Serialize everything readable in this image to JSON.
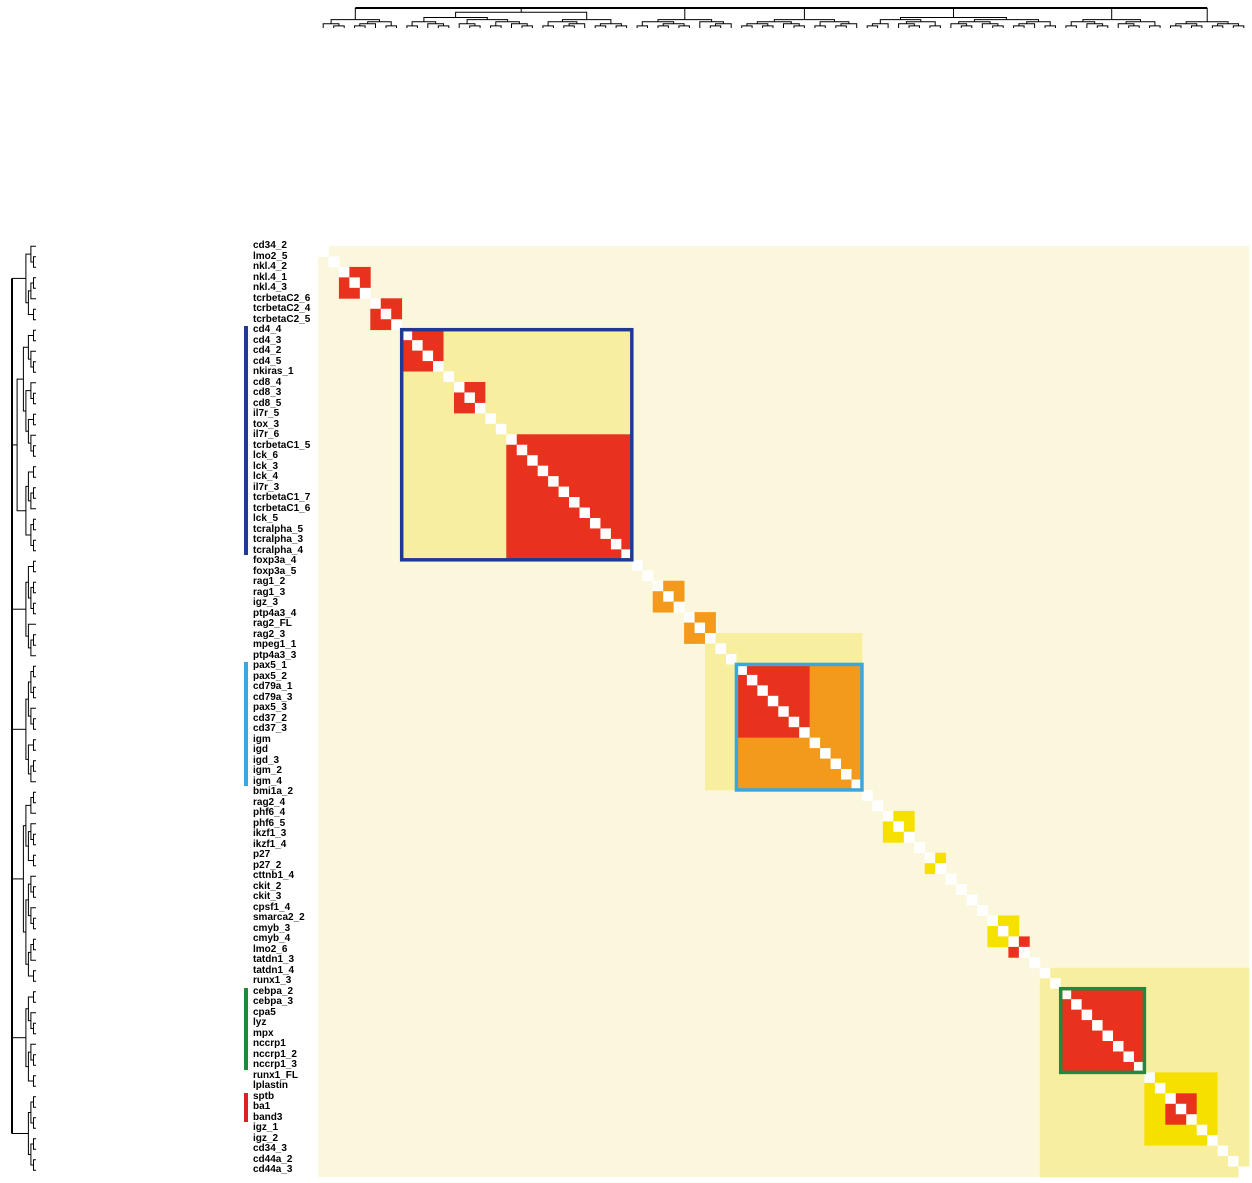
{
  "chart_data": {
    "type": "heatmap",
    "title": "",
    "xlabel": "",
    "ylabel": "",
    "row_labels": [
      "cd34_2",
      "lmo2_5",
      "nkl.4_2",
      "nkl.4_1",
      "nkl.4_3",
      "tcrbetaC2_6",
      "tcrbetaC2_4",
      "tcrbetaC2_5",
      "cd4_4",
      "cd4_3",
      "cd4_2",
      "cd4_5",
      "nkiras_1",
      "cd8_4",
      "cd8_3",
      "cd8_5",
      "il7r_5",
      "tox_3",
      "il7r_6",
      "tcrbetaC1_5",
      "lck_6",
      "lck_3",
      "lck_4",
      "il7r_3",
      "tcrbetaC1_7",
      "tcrbetaC1_6",
      "lck_5",
      "tcralpha_5",
      "tcralpha_3",
      "tcralpha_4",
      "foxp3a_4",
      "foxp3a_5",
      "rag1_2",
      "rag1_3",
      "igz_3",
      "ptp4a3_4",
      "rag2_FL",
      "rag2_3",
      "mpeg1_1",
      "ptp4a3_3",
      "pax5_1",
      "pax5_2",
      "cd79a_1",
      "cd79a_3",
      "pax5_3",
      "cd37_2",
      "cd37_3",
      "igm",
      "igd",
      "igd_3",
      "igm_2",
      "igm_4",
      "bmi1a_2",
      "rag2_4",
      "phf6_4",
      "phf6_5",
      "ikzf1_3",
      "ikzf1_4",
      "p27",
      "p27_2",
      "cttnb1_4",
      "ckit_2",
      "ckit_3",
      "cpsf1_4",
      "smarca2_2",
      "cmyb_3",
      "cmyb_4",
      "lmo2_6",
      "tatdn1_3",
      "tatdn1_4",
      "runx1_3",
      "cebpa_2",
      "cebpa_3",
      "cpa5",
      "lyz",
      "mpx",
      "nccrp1",
      "nccrp1_2",
      "nccrp1_3",
      "runx1_FL",
      "lplastin",
      "sptb",
      "ba1",
      "band3",
      "igz_1",
      "igz_2",
      "cd34_3",
      "cd44a_2",
      "cd44a_3"
    ],
    "blocks": [
      {
        "start": 2,
        "end": 4,
        "strength": 0.95
      },
      {
        "start": 5,
        "end": 7,
        "strength": 0.95
      },
      {
        "start": 8,
        "end": 11,
        "strength": 0.95
      },
      {
        "start": 13,
        "end": 15,
        "strength": 0.95
      },
      {
        "start": 8,
        "end": 29,
        "strength": 0.35
      },
      {
        "start": 18,
        "end": 29,
        "strength": 0.95
      },
      {
        "start": 32,
        "end": 34,
        "strength": 0.8
      },
      {
        "start": 35,
        "end": 37,
        "strength": 0.75
      },
      {
        "start": 37,
        "end": 51,
        "strength": 0.35
      },
      {
        "start": 40,
        "end": 51,
        "strength": 0.85
      },
      {
        "start": 40,
        "end": 46,
        "strength": 0.95
      },
      {
        "start": 54,
        "end": 56,
        "strength": 0.4
      },
      {
        "start": 58,
        "end": 59,
        "strength": 0.6
      },
      {
        "start": 64,
        "end": 66,
        "strength": 0.55
      },
      {
        "start": 66,
        "end": 67,
        "strength": 0.95
      },
      {
        "start": 69,
        "end": 88,
        "strength": 0.2
      },
      {
        "start": 70,
        "end": 84,
        "strength": 0.35
      },
      {
        "start": 71,
        "end": 78,
        "strength": 0.95
      },
      {
        "start": 79,
        "end": 85,
        "strength": 0.45
      },
      {
        "start": 81,
        "end": 83,
        "strength": 0.95
      }
    ],
    "highlight_boxes": [
      {
        "start": 8,
        "end": 29,
        "color": "#1f3a93"
      },
      {
        "start": 40,
        "end": 51,
        "color": "#3aa6dc"
      },
      {
        "start": 71,
        "end": 78,
        "color": "#1f8a3a"
      }
    ],
    "group_bars": [
      {
        "start": 8,
        "end": 29,
        "color": "#1f3a93"
      },
      {
        "start": 40,
        "end": 51,
        "color": "#3aa6dc"
      },
      {
        "start": 71,
        "end": 78,
        "color": "#1f8a3a"
      },
      {
        "start": 81,
        "end": 83,
        "color": "#e02020"
      }
    ],
    "colors": {
      "background": "#fbf7dc",
      "diagonal": "#ffffff",
      "low": "#f8eea0",
      "mid": "#f5e000",
      "high": "#f39a1c",
      "max": "#e8321e"
    }
  }
}
